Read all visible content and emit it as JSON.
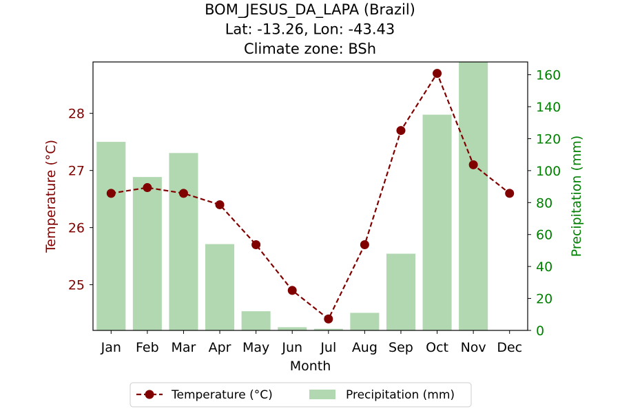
{
  "chart_data": {
    "type": "bar+line",
    "title_lines": [
      "BOM_JESUS_DA_LAPA (Brazil)",
      "Lat: -13.26, Lon: -43.43",
      "Climate zone: BSh"
    ],
    "xlabel": "Month",
    "ylabel_left": "Temperature (°C)",
    "ylabel_right": "Precipitation (mm)",
    "categories": [
      "Jan",
      "Feb",
      "Mar",
      "Apr",
      "May",
      "Jun",
      "Jul",
      "Aug",
      "Sep",
      "Oct",
      "Nov",
      "Dec"
    ],
    "temperature": {
      "name": "Temperature (°C)",
      "values": [
        26.6,
        26.7,
        26.6,
        26.4,
        25.7,
        24.9,
        24.4,
        25.7,
        27.7,
        28.7,
        27.1,
        26.6
      ],
      "color": "#800000"
    },
    "precipitation": {
      "name": "Precipitation (mm)",
      "values": [
        118,
        96,
        111,
        54,
        12,
        2,
        1,
        11,
        48,
        135,
        168,
        0
      ],
      "color": "#b2d8b2"
    },
    "left_ylim": [
      24.2,
      28.9
    ],
    "left_yticks": [
      25,
      26,
      27,
      28
    ],
    "right_ylim": [
      0,
      168
    ],
    "right_yticks": [
      0,
      20,
      40,
      60,
      80,
      100,
      120,
      140,
      160
    ],
    "left_axis_color": "#800000",
    "right_axis_color": "#008000",
    "legend_position": "bottom-center",
    "grid": false
  }
}
